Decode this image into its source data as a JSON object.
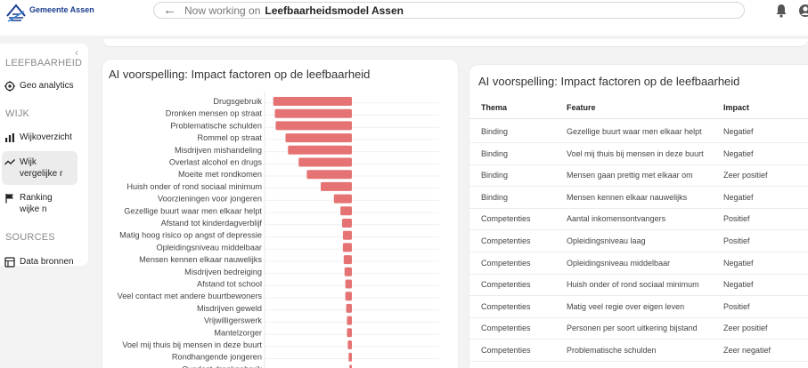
{
  "header": {
    "logo_text": "Gemeente Assen",
    "working_label": "Now working on",
    "working_name": "Leefbaarheidsmodel Assen"
  },
  "sidebar": {
    "sections": [
      {
        "title": "LEEFBAARHEID",
        "items": [
          {
            "label": "Geo analytics",
            "icon": "geo-icon"
          }
        ]
      },
      {
        "title": "WIJK",
        "items": [
          {
            "label": "Wijkoverzicht",
            "icon": "chart-icon"
          },
          {
            "label": "Wijk vergelijke r",
            "icon": "compare-icon",
            "active": true
          },
          {
            "label": "Ranking wijke n",
            "icon": "flag-icon"
          }
        ]
      },
      {
        "title": "SOURCES",
        "items": [
          {
            "label": "Data bronnen",
            "icon": "database-icon"
          }
        ]
      }
    ]
  },
  "left_card": {
    "title": "AI voorspelling: Impact factoren op de leefbaarheid"
  },
  "chart_data": {
    "type": "bar",
    "orientation": "horizontal",
    "bar_color": "#e57373",
    "categories": [
      "Drugsgebruik",
      "Dronken mensen op straat",
      "Problematische schulden",
      "Rommel op straat",
      "Misdrijven mishandeling",
      "Overlast alcohol en drugs",
      "Moeite met rondkomen",
      "Huish onder of rond sociaal minimum",
      "Voorzieningen voor jongeren",
      "Gezellige buurt waar men elkaar helpt",
      "Afstand tot kinderdagverblijf",
      "Matig hoog risico op angst of depressie",
      "Opleidingsniveau middelbaar",
      "Mensen kennen elkaar nauwelijks",
      "Misdrijven bedreiging",
      "Afstand tot school",
      "Veel contact met andere buurtbewoners",
      "Misdrijven geweld",
      "Vrijwilligerswerk",
      "Mantelzorger",
      "Voel mij thuis bij mensen in deze buurt",
      "Rondhangende jongeren",
      "Overlast drankgebruik"
    ],
    "values": [
      -0.96,
      -0.94,
      -0.93,
      -0.81,
      -0.78,
      -0.65,
      -0.55,
      -0.38,
      -0.22,
      -0.14,
      -0.12,
      -0.11,
      -0.11,
      -0.1,
      -0.09,
      -0.08,
      -0.08,
      -0.07,
      -0.06,
      -0.06,
      -0.05,
      -0.04,
      -0.03
    ]
  },
  "right_card": {
    "title": "AI voorspelling: Impact factoren op de leefbaarheid",
    "columns": [
      "Thema",
      "Feature",
      "Impact"
    ],
    "rows": [
      [
        "Binding",
        "Gezellige buurt waar men elkaar helpt",
        "Negatief"
      ],
      [
        "Binding",
        "Voel mij thuis bij mensen in deze buurt",
        "Negatief"
      ],
      [
        "Binding",
        "Mensen gaan prettig met elkaar om",
        "Zeer positief"
      ],
      [
        "Binding",
        "Mensen kennen elkaar nauwelijks",
        "Negatief"
      ],
      [
        "Competenties",
        "Aantal inkomensontvangers",
        "Positief"
      ],
      [
        "Competenties",
        "Opleidingsniveau laag",
        "Positief"
      ],
      [
        "Competenties",
        "Opleidingsniveau middelbaar",
        "Negatief"
      ],
      [
        "Competenties",
        "Huish onder of rond sociaal minimum",
        "Negatief"
      ],
      [
        "Competenties",
        "Matig veel regie over eigen leven",
        "Positief"
      ],
      [
        "Competenties",
        "Personen per soort uitkering bijstand",
        "Zeer positief"
      ],
      [
        "Competenties",
        "Problematische schulden",
        "Zeer negatief"
      ]
    ]
  }
}
